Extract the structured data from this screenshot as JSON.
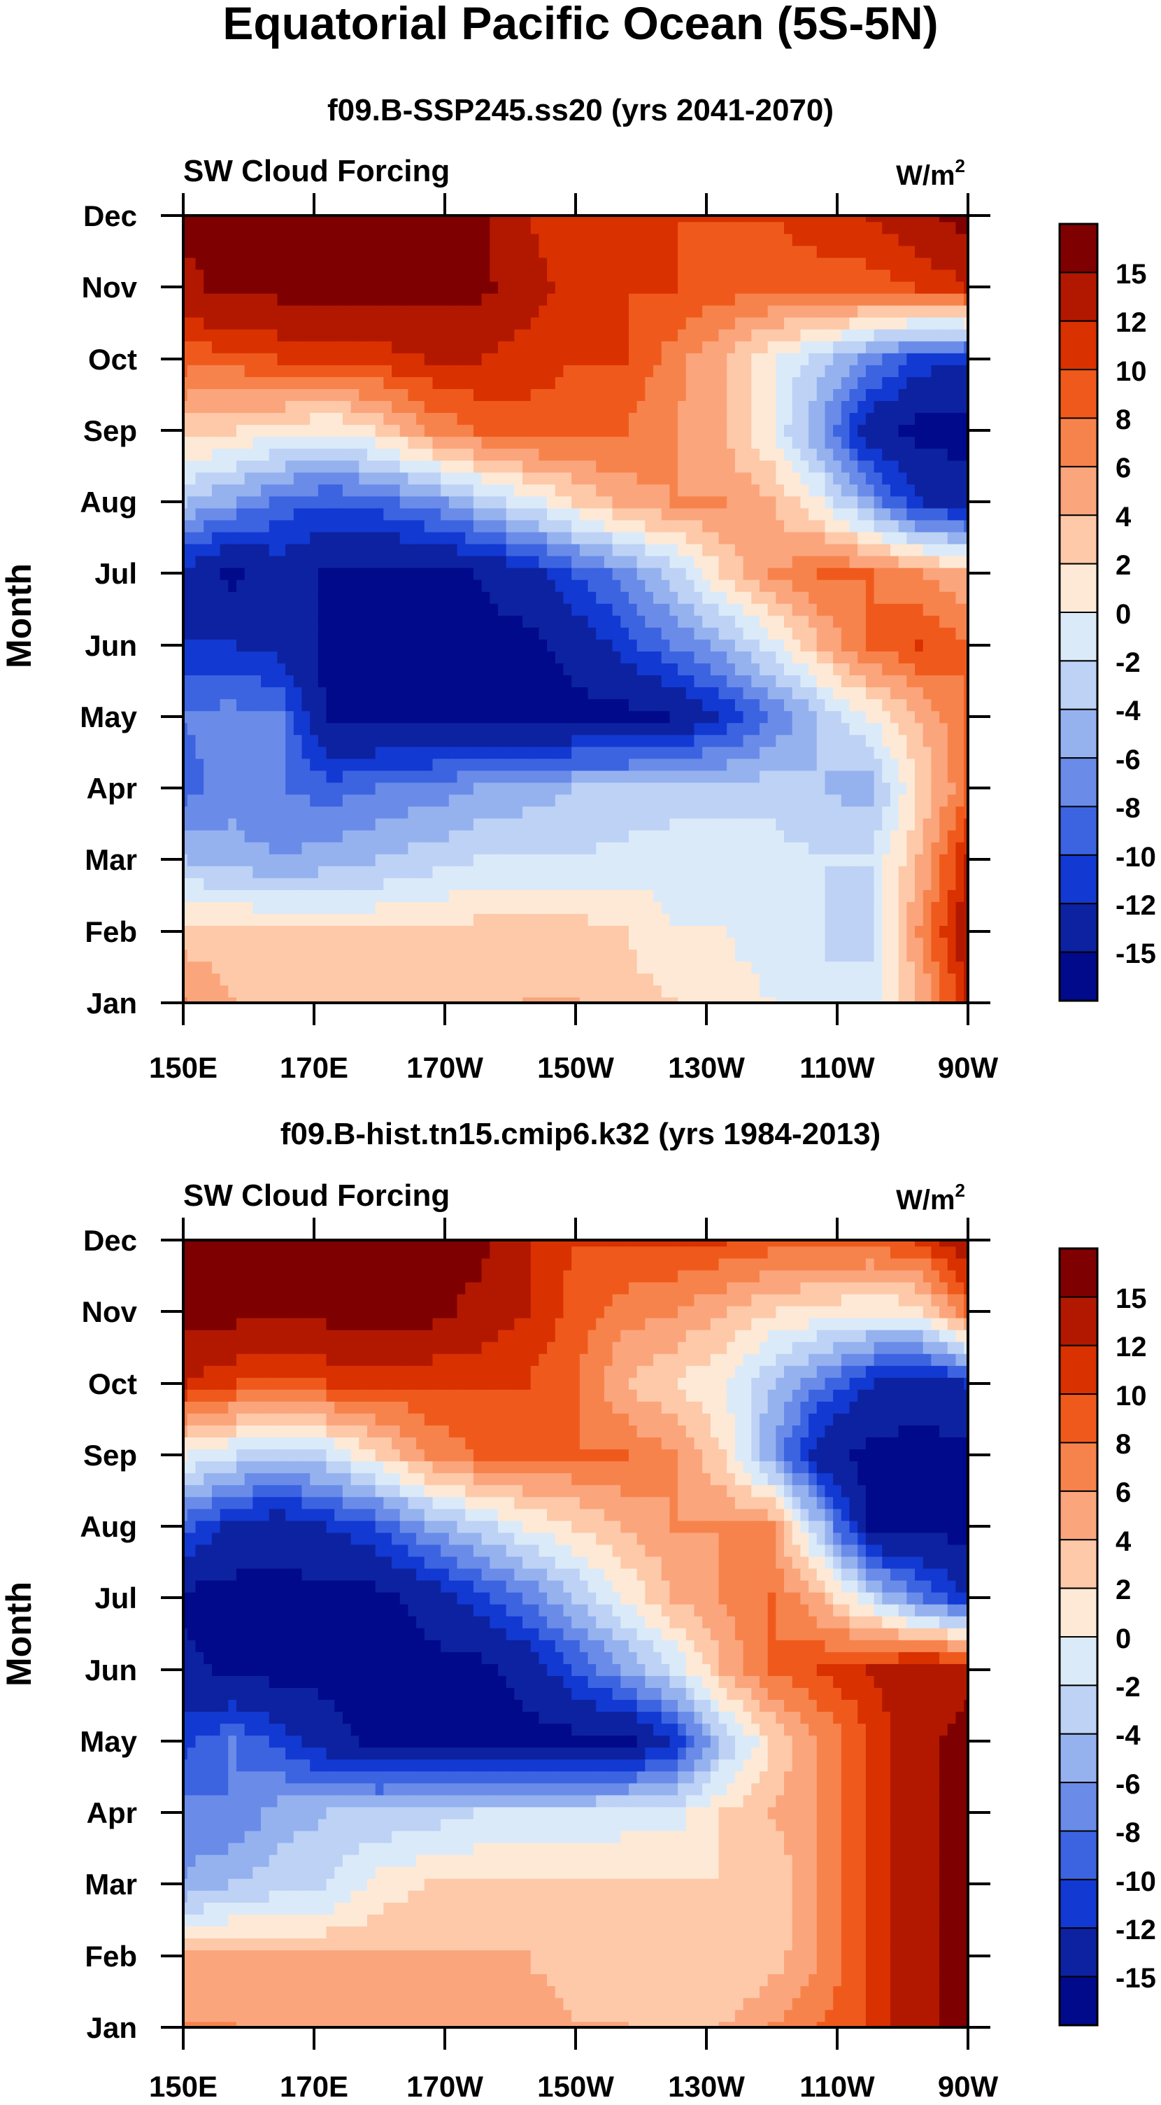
{
  "figure": {
    "title": "Equatorial Pacific Ocean (5S-5N)"
  },
  "chart_data": [
    {
      "type": "heatmap",
      "title": "f09.B-SSP245.ss20 (yrs 2041-2070)",
      "left_label": "SW Cloud Forcing",
      "units": {
        "base": "W/m",
        "exponent": "2"
      },
      "xlabel": "",
      "ylabel": "Month",
      "x_ticks": [
        "150E",
        "170E",
        "170W",
        "150W",
        "130W",
        "110W",
        "90W"
      ],
      "y_ticks": [
        "Jan",
        "Feb",
        "Mar",
        "Apr",
        "May",
        "Jun",
        "Jul",
        "Aug",
        "Sep",
        "Oct",
        "Nov",
        "Dec"
      ],
      "x_range_deg_east": [
        150,
        270
      ],
      "colorbar_levels": [
        "15",
        "12",
        "10",
        "8",
        "6",
        "4",
        "2",
        "0",
        "-2",
        "-4",
        "-6",
        "-8",
        "-10",
        "-12",
        "-15"
      ],
      "colorbar_colors": [
        "#7f0000",
        "#b21800",
        "#d93100",
        "#ef5a1c",
        "#f7834c",
        "#fba57d",
        "#fdc9a9",
        "#fde9d6",
        "#dbeaf9",
        "#bdd2f5",
        "#95b2ef",
        "#6a8ce8",
        "#3c64e1",
        "#1239d2",
        "#0d22a0",
        "#000a8a"
      ],
      "values_per_month": [
        [
          6,
          4,
          3,
          2,
          2,
          2,
          3,
          4,
          4,
          3,
          2,
          1,
          0,
          -2,
          -1,
          4,
          12
        ],
        [
          3,
          3,
          2,
          2,
          2,
          2,
          3,
          3,
          3,
          2,
          0,
          0,
          -1,
          -2,
          -3,
          6,
          14
        ],
        [
          -4,
          -5,
          -6,
          -5,
          -4,
          -3,
          -2,
          -2,
          -2,
          -1,
          -1,
          -1,
          -1,
          -2,
          -2,
          4,
          12
        ],
        [
          -9,
          -7,
          -8,
          -9,
          -8,
          -7,
          -6,
          -5,
          -4,
          -4,
          -3,
          -3,
          -3,
          -4,
          -5,
          2,
          8
        ],
        [
          -8,
          -7,
          -8,
          -16,
          -16,
          -16,
          -16,
          -16,
          -16,
          -16,
          -15,
          -12,
          -8,
          -4,
          0,
          4,
          8
        ],
        [
          -12,
          -12,
          -13,
          -16,
          -16,
          -16,
          -16,
          -16,
          -14,
          -11,
          -8,
          -5,
          -1,
          4,
          8,
          10,
          8
        ],
        [
          -13,
          -16,
          -13,
          -16,
          -16,
          -16,
          -15,
          -13,
          -10,
          -7,
          -3,
          2,
          6,
          8,
          8,
          6,
          4
        ],
        [
          -4,
          -6,
          -9,
          -10,
          -9,
          -7,
          -4,
          -1,
          2,
          5,
          6,
          6,
          4,
          0,
          -6,
          -12,
          -14
        ],
        [
          3,
          2,
          1,
          0,
          2,
          6,
          8,
          9,
          9,
          8,
          6,
          4,
          0,
          -6,
          -14,
          -16,
          -16
        ],
        [
          9,
          9,
          10,
          10,
          11,
          12,
          12,
          11,
          10,
          10,
          7,
          4,
          0,
          -3,
          -7,
          -11,
          -12
        ],
        [
          14,
          16,
          16,
          16,
          16,
          16,
          16,
          13,
          11,
          10,
          10,
          9,
          9,
          9,
          9,
          10,
          12
        ],
        [
          16,
          16,
          16,
          16,
          16,
          16,
          16,
          12,
          10,
          10,
          10,
          10,
          10,
          11,
          12,
          14,
          16
        ]
      ]
    },
    {
      "type": "heatmap",
      "title": "f09.B-hist.tn15.cmip6.k32 (yrs 1984-2013)",
      "left_label": "SW Cloud Forcing",
      "units": {
        "base": "W/m",
        "exponent": "2"
      },
      "xlabel": "",
      "ylabel": "Month",
      "x_ticks": [
        "150E",
        "170E",
        "170W",
        "150W",
        "130W",
        "110W",
        "90W"
      ],
      "y_ticks": [
        "Jan",
        "Feb",
        "Mar",
        "Apr",
        "May",
        "Jun",
        "Jul",
        "Aug",
        "Sep",
        "Oct",
        "Nov",
        "Dec"
      ],
      "x_range_deg_east": [
        150,
        270
      ],
      "colorbar_levels": [
        "15",
        "12",
        "10",
        "8",
        "6",
        "4",
        "2",
        "0",
        "-2",
        "-4",
        "-6",
        "-8",
        "-10",
        "-12",
        "-15"
      ],
      "colorbar_colors": [
        "#7f0000",
        "#b21800",
        "#d93100",
        "#ef5a1c",
        "#f7834c",
        "#fba57d",
        "#fdc9a9",
        "#fde9d6",
        "#dbeaf9",
        "#bdd2f5",
        "#95b2ef",
        "#6a8ce8",
        "#3c64e1",
        "#1239d2",
        "#0d22a0",
        "#000a8a"
      ],
      "values_per_month": [
        [
          6,
          6,
          5,
          5,
          5,
          5,
          5,
          5,
          4,
          4,
          3,
          4,
          6,
          8,
          10,
          14,
          16
        ],
        [
          5,
          4,
          4,
          4,
          4,
          4,
          4,
          4,
          3,
          2,
          2,
          2,
          3,
          6,
          10,
          14,
          16
        ],
        [
          -6,
          -4,
          -3,
          -2,
          1,
          2,
          2,
          2,
          2,
          2,
          2,
          2,
          2,
          6,
          10,
          14,
          16
        ],
        [
          -7,
          -8,
          -5,
          -4,
          -4,
          -3,
          -2,
          -2,
          -2,
          -1,
          -1,
          2,
          4,
          6,
          10,
          14,
          16
        ],
        [
          -11,
          -8,
          -11,
          -14,
          -16,
          -16,
          -16,
          -16,
          -16,
          -16,
          -12,
          -4,
          2,
          6,
          10,
          14,
          16
        ],
        [
          -14,
          -16,
          -16,
          -16,
          -16,
          -16,
          -16,
          -14,
          -10,
          -6,
          -2,
          4,
          8,
          10,
          12,
          14,
          14
        ],
        [
          -16,
          -16,
          -16,
          -16,
          -16,
          -14,
          -11,
          -8,
          -4,
          0,
          4,
          6,
          8,
          4,
          -2,
          -8,
          -12
        ],
        [
          -9,
          -13,
          -14,
          -12,
          -10,
          -6,
          -3,
          0,
          2,
          4,
          6,
          6,
          6,
          -4,
          -16,
          -16,
          -16
        ],
        [
          0,
          -2,
          -4,
          -2,
          2,
          6,
          8,
          8,
          8,
          8,
          6,
          2,
          -6,
          -14,
          -16,
          -16,
          -16
        ],
        [
          12,
          10,
          9,
          10,
          10,
          10,
          10,
          10,
          8,
          4,
          2,
          0,
          -4,
          -8,
          -12,
          -14,
          -12
        ],
        [
          16,
          16,
          16,
          16,
          16,
          16,
          14,
          12,
          9,
          7,
          6,
          4,
          2,
          1,
          0,
          1,
          8
        ],
        [
          16,
          16,
          16,
          16,
          16,
          16,
          16,
          12,
          10,
          10,
          10,
          10,
          9,
          9,
          9,
          10,
          14
        ]
      ]
    }
  ]
}
